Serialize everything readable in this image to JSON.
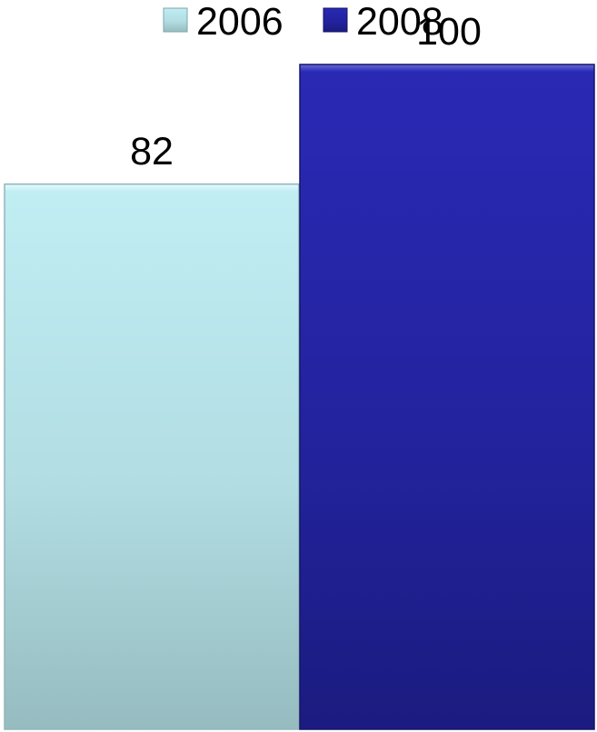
{
  "chart_data": {
    "type": "bar",
    "categories": [
      ""
    ],
    "series": [
      {
        "name": "2006",
        "values": [
          82
        ],
        "color": "#b3e3ea"
      },
      {
        "name": "2008",
        "values": [
          100
        ],
        "color": "#2426a6"
      }
    ],
    "data_labels": [
      "82",
      "100"
    ],
    "ylim": [
      0,
      100
    ],
    "legend_position": "top",
    "grid": false
  }
}
